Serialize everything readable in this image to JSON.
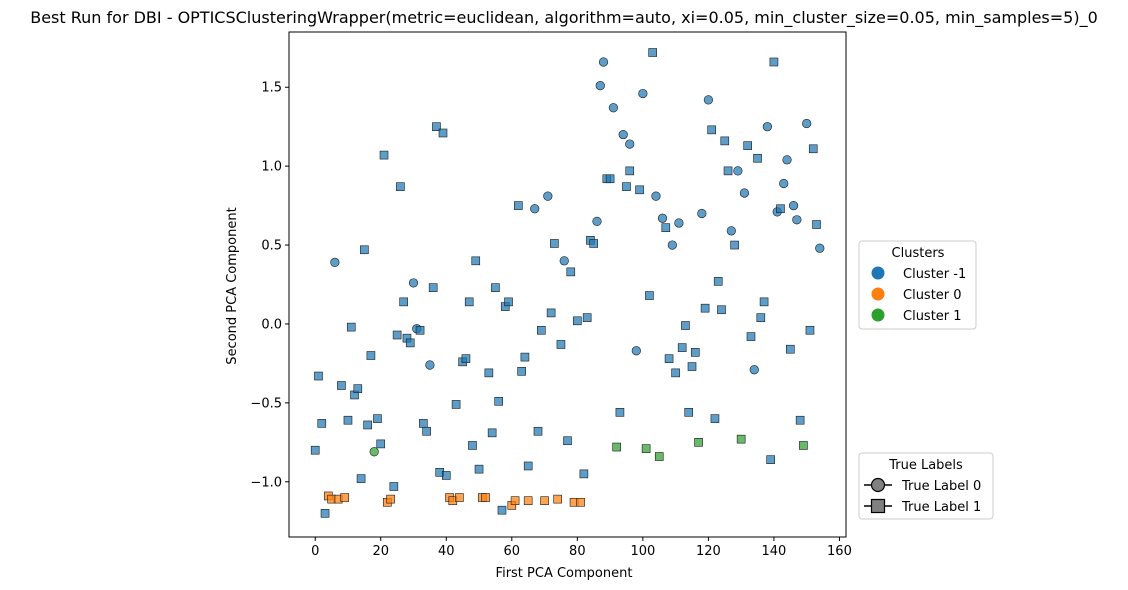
{
  "chart_data": {
    "type": "scatter",
    "title": "Best Run for DBI - OPTICSClusteringWrapper(metric=euclidean, algorithm=auto, xi=0.05, min_cluster_size=0.05, min_samples=5)_0",
    "xlabel": "First PCA Component",
    "ylabel": "Second PCA Component",
    "xlim": [
      -8,
      162
    ],
    "ylim": [
      -1.35,
      1.85
    ],
    "xticks": [
      0,
      20,
      40,
      60,
      80,
      100,
      120,
      140,
      160
    ],
    "yticks": [
      -1.0,
      -0.5,
      0.0,
      0.5,
      1.0,
      1.5
    ],
    "xtick_labels": [
      "0",
      "20",
      "40",
      "60",
      "80",
      "100",
      "120",
      "140",
      "160"
    ],
    "ytick_labels": [
      "−1.0",
      "−0.5",
      "0.0",
      "0.5",
      "1.0",
      "1.5"
    ],
    "grid": false,
    "cluster_legend": {
      "title": "Clusters",
      "placement": "right",
      "entries": [
        {
          "label": "Cluster -1",
          "color": "#1f77b4"
        },
        {
          "label": "Cluster 0",
          "color": "#ff7f0e"
        },
        {
          "label": "Cluster 1",
          "color": "#2ca02c"
        }
      ]
    },
    "label_legend": {
      "title": "True Labels",
      "placement": "lower-right",
      "entries": [
        {
          "label": "True Label 0",
          "marker": "circle"
        },
        {
          "label": "True Label 1",
          "marker": "square"
        }
      ]
    },
    "series": [
      {
        "cluster": "Cluster -1",
        "true_label": "True Label 0",
        "marker": "circle",
        "color": "#1f77b4",
        "points": [
          [
            6,
            0.39
          ],
          [
            30,
            0.26
          ],
          [
            31,
            -0.03
          ],
          [
            35,
            -0.26
          ],
          [
            67,
            0.73
          ],
          [
            71,
            0.81
          ],
          [
            76,
            0.4
          ],
          [
            86,
            0.65
          ],
          [
            87,
            1.51
          ],
          [
            88,
            1.66
          ],
          [
            91,
            1.37
          ],
          [
            94,
            1.2
          ],
          [
            96,
            1.14
          ],
          [
            98,
            -0.17
          ],
          [
            100,
            1.46
          ],
          [
            104,
            0.81
          ],
          [
            106,
            0.67
          ],
          [
            109,
            0.5
          ],
          [
            111,
            0.64
          ],
          [
            118,
            0.7
          ],
          [
            120,
            1.42
          ],
          [
            127,
            0.59
          ],
          [
            129,
            0.97
          ],
          [
            131,
            0.83
          ],
          [
            134,
            -0.29
          ],
          [
            138,
            1.25
          ],
          [
            141,
            0.71
          ],
          [
            143,
            0.89
          ],
          [
            144,
            1.04
          ],
          [
            146,
            0.75
          ],
          [
            147,
            0.66
          ],
          [
            150,
            1.27
          ],
          [
            154,
            0.48
          ]
        ]
      },
      {
        "cluster": "Cluster -1",
        "true_label": "True Label 1",
        "marker": "square",
        "color": "#1f77b4",
        "points": [
          [
            0,
            -0.8
          ],
          [
            1,
            -0.33
          ],
          [
            2,
            -0.63
          ],
          [
            3,
            -1.2
          ],
          [
            8,
            -0.39
          ],
          [
            10,
            -0.61
          ],
          [
            11,
            -0.02
          ],
          [
            12,
            -0.45
          ],
          [
            13,
            -0.41
          ],
          [
            14,
            -0.98
          ],
          [
            15,
            0.47
          ],
          [
            16,
            -0.64
          ],
          [
            17,
            -0.2
          ],
          [
            19,
            -0.6
          ],
          [
            20,
            -0.76
          ],
          [
            21,
            1.07
          ],
          [
            24,
            -1.03
          ],
          [
            25,
            -0.07
          ],
          [
            26,
            0.87
          ],
          [
            27,
            0.14
          ],
          [
            28,
            -0.09
          ],
          [
            29,
            -0.12
          ],
          [
            32,
            -0.04
          ],
          [
            33,
            -0.63
          ],
          [
            34,
            -0.68
          ],
          [
            36,
            0.23
          ],
          [
            37,
            1.25
          ],
          [
            38,
            -0.94
          ],
          [
            39,
            1.21
          ],
          [
            40,
            -0.96
          ],
          [
            43,
            -0.51
          ],
          [
            45,
            -0.24
          ],
          [
            46,
            -0.22
          ],
          [
            47,
            0.14
          ],
          [
            48,
            -0.77
          ],
          [
            49,
            0.4
          ],
          [
            50,
            -0.92
          ],
          [
            53,
            -0.31
          ],
          [
            54,
            -0.69
          ],
          [
            55,
            0.23
          ],
          [
            56,
            -0.49
          ],
          [
            57,
            -1.18
          ],
          [
            58,
            0.11
          ],
          [
            59,
            0.14
          ],
          [
            62,
            0.75
          ],
          [
            63,
            -0.3
          ],
          [
            64,
            -0.21
          ],
          [
            65,
            -0.9
          ],
          [
            68,
            -0.68
          ],
          [
            69,
            -0.04
          ],
          [
            72,
            0.07
          ],
          [
            73,
            0.51
          ],
          [
            75,
            -0.13
          ],
          [
            77,
            -0.74
          ],
          [
            78,
            0.33
          ],
          [
            80,
            0.02
          ],
          [
            82,
            -0.95
          ],
          [
            83,
            0.04
          ],
          [
            84,
            0.53
          ],
          [
            85,
            0.51
          ],
          [
            89,
            0.92
          ],
          [
            90,
            0.92
          ],
          [
            93,
            -0.56
          ],
          [
            95,
            0.87
          ],
          [
            96,
            0.97
          ],
          [
            99,
            0.85
          ],
          [
            102,
            0.18
          ],
          [
            107,
            0.61
          ],
          [
            108,
            -0.22
          ],
          [
            110,
            -0.31
          ],
          [
            112,
            -0.15
          ],
          [
            113,
            -0.01
          ],
          [
            114,
            -0.56
          ],
          [
            115,
            -0.27
          ],
          [
            116,
            -0.18
          ],
          [
            103,
            1.72
          ],
          [
            119,
            0.1
          ],
          [
            121,
            1.23
          ],
          [
            122,
            -0.6
          ],
          [
            123,
            0.27
          ],
          [
            124,
            0.09
          ],
          [
            125,
            1.16
          ],
          [
            126,
            0.97
          ],
          [
            128,
            0.5
          ],
          [
            132,
            1.13
          ],
          [
            133,
            -0.08
          ],
          [
            135,
            1.05
          ],
          [
            136,
            0.04
          ],
          [
            137,
            0.14
          ],
          [
            139,
            -0.86
          ],
          [
            140,
            1.66
          ],
          [
            142,
            0.73
          ],
          [
            145,
            -0.16
          ],
          [
            148,
            -0.61
          ],
          [
            151,
            -0.04
          ],
          [
            152,
            1.11
          ],
          [
            153,
            0.63
          ]
        ]
      },
      {
        "cluster": "Cluster 0",
        "true_label": "True Label 1",
        "marker": "square",
        "color": "#ff7f0e",
        "points": [
          [
            4,
            -1.09
          ],
          [
            5,
            -1.11
          ],
          [
            7,
            -1.11
          ],
          [
            9,
            -1.1
          ],
          [
            22,
            -1.13
          ],
          [
            23,
            -1.11
          ],
          [
            41,
            -1.1
          ],
          [
            42,
            -1.12
          ],
          [
            44,
            -1.1
          ],
          [
            51,
            -1.1
          ],
          [
            52,
            -1.1
          ],
          [
            60,
            -1.15
          ],
          [
            61,
            -1.12
          ],
          [
            65,
            -1.12
          ],
          [
            70,
            -1.12
          ],
          [
            74,
            -1.11
          ],
          [
            79,
            -1.13
          ],
          [
            81,
            -1.13
          ]
        ]
      },
      {
        "cluster": "Cluster 1",
        "true_label": "True Label 1",
        "marker": "square",
        "color": "#2ca02c",
        "points": [
          [
            92,
            -0.78
          ],
          [
            101,
            -0.79
          ],
          [
            105,
            -0.84
          ],
          [
            117,
            -0.75
          ],
          [
            130,
            -0.73
          ],
          [
            149,
            -0.77
          ]
        ]
      },
      {
        "cluster": "Cluster 1",
        "true_label": "True Label 0",
        "marker": "circle",
        "color": "#2ca02c",
        "points": [
          [
            18,
            -0.81
          ]
        ]
      }
    ]
  }
}
